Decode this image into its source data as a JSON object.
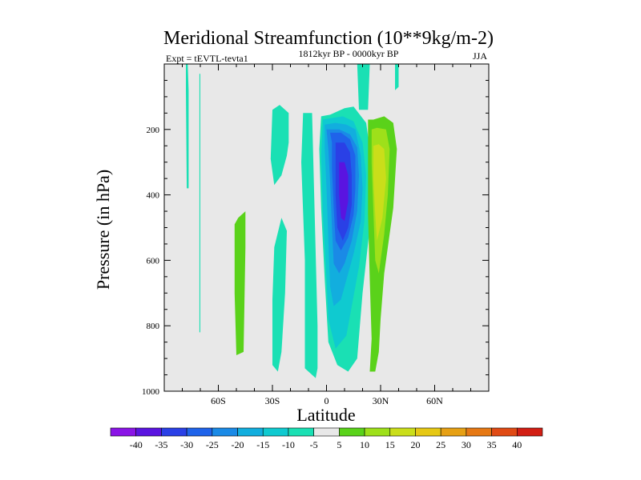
{
  "chart_data": {
    "type": "heatmap",
    "title": "Meridional Streamfunction (10**9kg/m-2)",
    "subtitle_left": "Expt = tEVTL-tevta1",
    "subtitle_center": "1812kyr BP - 0000kyr BP",
    "subtitle_right": "JJA",
    "xlabel": "Latitude",
    "ylabel": "Pressure (in hPa)",
    "xlim": [
      -90,
      90
    ],
    "ylim": [
      1000,
      0
    ],
    "x_ticks": [
      {
        "value": -60,
        "label": "60S"
      },
      {
        "value": -30,
        "label": "30S"
      },
      {
        "value": 0,
        "label": "0"
      },
      {
        "value": 30,
        "label": "30N"
      },
      {
        "value": 60,
        "label": "60N"
      }
    ],
    "y_ticks": [
      {
        "value": 200,
        "label": "200"
      },
      {
        "value": 400,
        "label": "400"
      },
      {
        "value": 600,
        "label": "600"
      },
      {
        "value": 800,
        "label": "800"
      },
      {
        "value": 1000,
        "label": "1000"
      }
    ],
    "background_color": "#e8e8e8",
    "levels": [
      -40,
      -35,
      -30,
      -25,
      -20,
      -15,
      -10,
      -5,
      5,
      10,
      15,
      20,
      25,
      30,
      35,
      40
    ],
    "level_labels": [
      "-40",
      "-35",
      "-30",
      "-25",
      "-20",
      "-15",
      "-10",
      "-5",
      "5",
      "10",
      "15",
      "20",
      "25",
      "30",
      "35",
      "40"
    ],
    "colors": [
      "#8a14e6",
      "#5a14e0",
      "#2a40e6",
      "#1f63ea",
      "#1a8ae6",
      "#12aede",
      "#0fcad0",
      "#1ae0b4",
      "#e8e8e8",
      "#5ad21a",
      "#9ee01a",
      "#cade1a",
      "#e6c814",
      "#e6a014",
      "#e67814",
      "#e04a14",
      "#d21e14"
    ],
    "features": [
      {
        "name": "thin-cell-75S",
        "value": -7,
        "points": [
          [
            -78,
            0
          ],
          [
            -77,
            0
          ],
          [
            -76.5,
            80
          ],
          [
            -76.5,
            380
          ],
          [
            -77.5,
            380
          ],
          [
            -78,
            80
          ]
        ]
      },
      {
        "name": "thin-cell-70S",
        "value": -7,
        "points": [
          [
            -70.5,
            30
          ],
          [
            -70,
            30
          ],
          [
            -70,
            820
          ],
          [
            -70.5,
            820
          ]
        ]
      },
      {
        "name": "positive-cell-50S",
        "value": 8,
        "points": [
          [
            -51,
            490
          ],
          [
            -49,
            470
          ],
          [
            -45,
            450
          ],
          [
            -45,
            560
          ],
          [
            -46,
            880
          ],
          [
            -50,
            890
          ],
          [
            -51,
            700
          ]
        ]
      },
      {
        "name": "cell-30S-upper",
        "value": -7,
        "points": [
          [
            -30,
            140
          ],
          [
            -26,
            125
          ],
          [
            -21,
            150
          ],
          [
            -21,
            240
          ],
          [
            -22,
            280
          ],
          [
            -25,
            340
          ],
          [
            -29,
            370
          ],
          [
            -31,
            290
          ]
        ]
      },
      {
        "name": "cell-30S-lower",
        "value": -7,
        "points": [
          [
            -30,
            720
          ],
          [
            -29,
            560
          ],
          [
            -25,
            470
          ],
          [
            -22,
            510
          ],
          [
            -23,
            700
          ],
          [
            -25,
            880
          ],
          [
            -27,
            940
          ],
          [
            -30,
            920
          ]
        ]
      },
      {
        "name": "equatorial-band",
        "value": -7,
        "points": [
          [
            -13,
            150
          ],
          [
            -8,
            150
          ],
          [
            -5,
            800
          ],
          [
            -5,
            930
          ],
          [
            -6,
            960
          ],
          [
            -12,
            930
          ],
          [
            -12,
            600
          ],
          [
            -14,
            300
          ]
        ]
      },
      {
        "name": "jet-stub-upper",
        "value": -7,
        "points": [
          [
            17,
            0
          ],
          [
            24,
            0
          ],
          [
            23,
            140
          ],
          [
            18,
            140
          ]
        ]
      },
      {
        "name": "cell-40N-stub",
        "value": -7,
        "points": [
          [
            38,
            0
          ],
          [
            40,
            0
          ],
          [
            40,
            70
          ],
          [
            38,
            80
          ]
        ]
      },
      {
        "name": "main-L1",
        "value": -7,
        "points": [
          [
            -3,
            160
          ],
          [
            2,
            155
          ],
          [
            10,
            135
          ],
          [
            15,
            130
          ],
          [
            22,
            180
          ],
          [
            25,
            300
          ],
          [
            24,
            500
          ],
          [
            20,
            700
          ],
          [
            17,
            900
          ],
          [
            12,
            940
          ],
          [
            6,
            920
          ],
          [
            1,
            850
          ],
          [
            -1,
            660
          ],
          [
            -3,
            440
          ],
          [
            -4,
            260
          ]
        ]
      },
      {
        "name": "main-L2",
        "value": -12,
        "points": [
          [
            -2,
            170
          ],
          [
            3,
            165
          ],
          [
            9,
            160
          ],
          [
            15,
            175
          ],
          [
            20,
            240
          ],
          [
            22,
            340
          ],
          [
            21,
            480
          ],
          [
            18,
            620
          ],
          [
            14,
            740
          ],
          [
            11,
            830
          ],
          [
            5,
            870
          ],
          [
            1,
            780
          ],
          [
            0,
            660
          ],
          [
            -2,
            460
          ],
          [
            -3,
            280
          ]
        ]
      },
      {
        "name": "main-L3",
        "value": -17,
        "points": [
          [
            -1,
            185
          ],
          [
            5,
            180
          ],
          [
            11,
            185
          ],
          [
            16,
            200
          ],
          [
            19,
            280
          ],
          [
            20,
            380
          ],
          [
            19,
            480
          ],
          [
            15,
            580
          ],
          [
            11,
            660
          ],
          [
            8,
            720
          ],
          [
            4,
            740
          ],
          [
            2,
            680
          ],
          [
            1,
            540
          ],
          [
            0,
            380
          ],
          [
            -1,
            260
          ]
        ]
      },
      {
        "name": "main-L4",
        "value": -22,
        "points": [
          [
            0,
            200
          ],
          [
            7,
            200
          ],
          [
            13,
            215
          ],
          [
            17,
            255
          ],
          [
            18,
            340
          ],
          [
            17,
            450
          ],
          [
            14,
            540
          ],
          [
            10,
            610
          ],
          [
            7,
            640
          ],
          [
            4,
            610
          ],
          [
            3,
            500
          ],
          [
            2,
            360
          ],
          [
            1,
            260
          ]
        ]
      },
      {
        "name": "main-L5",
        "value": -27,
        "points": [
          [
            2,
            210
          ],
          [
            8,
            210
          ],
          [
            13,
            230
          ],
          [
            16,
            280
          ],
          [
            16,
            380
          ],
          [
            15,
            460
          ],
          [
            12,
            530
          ],
          [
            8,
            570
          ],
          [
            5,
            540
          ],
          [
            4,
            440
          ],
          [
            3,
            320
          ],
          [
            3,
            240
          ]
        ]
      },
      {
        "name": "main-L6",
        "value": -32,
        "points": [
          [
            5,
            240
          ],
          [
            10,
            240
          ],
          [
            13,
            270
          ],
          [
            14,
            340
          ],
          [
            14,
            430
          ],
          [
            12,
            500
          ],
          [
            9,
            540
          ],
          [
            6,
            500
          ],
          [
            5,
            400
          ],
          [
            5,
            300
          ]
        ]
      },
      {
        "name": "main-L7",
        "value": -37,
        "points": [
          [
            7,
            300
          ],
          [
            10,
            300
          ],
          [
            12,
            340
          ],
          [
            12,
            420
          ],
          [
            10,
            480
          ],
          [
            8,
            470
          ],
          [
            7,
            400
          ]
        ]
      },
      {
        "name": "nh-L1",
        "value": 8,
        "points": [
          [
            23,
            170
          ],
          [
            26,
            170
          ],
          [
            32,
            160
          ],
          [
            37,
            180
          ],
          [
            39,
            260
          ],
          [
            37,
            440
          ],
          [
            32,
            640
          ],
          [
            30,
            780
          ],
          [
            29,
            880
          ],
          [
            27,
            940
          ],
          [
            24,
            940
          ],
          [
            25,
            840
          ],
          [
            24,
            660
          ],
          [
            23,
            460
          ],
          [
            23,
            280
          ]
        ]
      },
      {
        "name": "nh-L2",
        "value": 12,
        "points": [
          [
            25,
            200
          ],
          [
            28,
            195
          ],
          [
            33,
            200
          ],
          [
            35,
            260
          ],
          [
            34,
            400
          ],
          [
            32,
            520
          ],
          [
            29,
            640
          ],
          [
            27,
            600
          ],
          [
            26,
            450
          ],
          [
            25,
            300
          ]
        ]
      },
      {
        "name": "nh-L3",
        "value": 17,
        "points": [
          [
            26,
            250
          ],
          [
            29,
            245
          ],
          [
            32,
            260
          ],
          [
            33,
            350
          ],
          [
            31,
            470
          ],
          [
            28,
            540
          ],
          [
            27,
            460
          ],
          [
            26,
            350
          ]
        ]
      }
    ]
  }
}
